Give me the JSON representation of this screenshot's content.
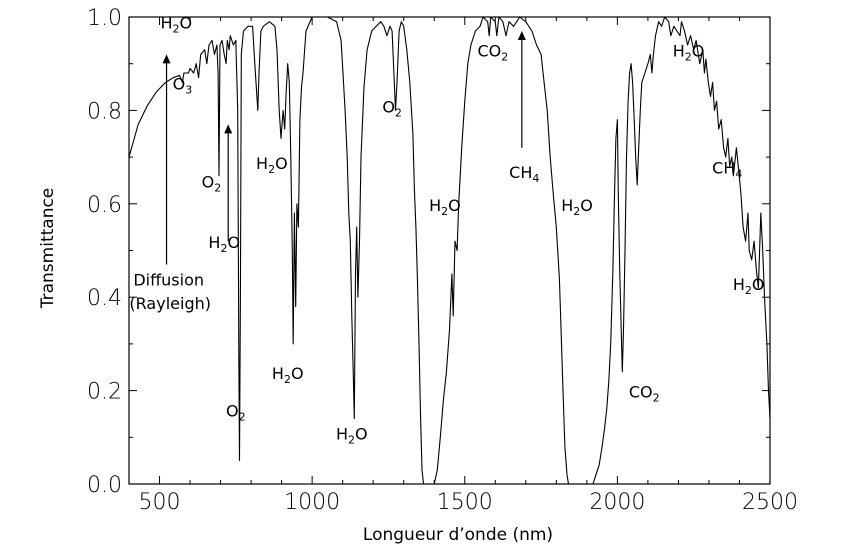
{
  "chart_data": {
    "type": "line",
    "title": "",
    "xlabel": "Longueur d’onde (nm)",
    "ylabel": "Transmittance",
    "xlim": [
      400,
      2500
    ],
    "ylim": [
      0,
      1.0
    ],
    "x_ticks": [
      {
        "value": 500,
        "label": "500"
      },
      {
        "value": 1000,
        "label": "1000"
      },
      {
        "value": 1500,
        "label": "1500"
      },
      {
        "value": 2000,
        "label": "2000"
      },
      {
        "value": 2500,
        "label": "2500"
      }
    ],
    "y_ticks": [
      {
        "value": 0.0,
        "label": "0.0"
      },
      {
        "value": 0.2,
        "label": "0.2"
      },
      {
        "value": 0.4,
        "label": "0.4"
      },
      {
        "value": 0.6,
        "label": "0.6"
      },
      {
        "value": 0.8,
        "label": "0.8"
      },
      {
        "value": 1.0,
        "label": "1.0"
      }
    ],
    "grid": false,
    "legend": "none",
    "series": [
      {
        "color": "#000000",
        "points": [
          [
            400,
            0.7
          ],
          [
            430,
            0.77
          ],
          [
            460,
            0.81
          ],
          [
            490,
            0.84
          ],
          [
            520,
            0.86
          ],
          [
            545,
            0.87
          ],
          [
            565,
            0.875
          ],
          [
            575,
            0.86
          ],
          [
            580,
            0.88
          ],
          [
            595,
            0.88
          ],
          [
            600,
            0.89
          ],
          [
            612,
            0.88
          ],
          [
            620,
            0.9
          ],
          [
            628,
            0.87
          ],
          [
            635,
            0.92
          ],
          [
            648,
            0.93
          ],
          [
            655,
            0.9
          ],
          [
            662,
            0.94
          ],
          [
            672,
            0.95
          ],
          [
            680,
            0.92
          ],
          [
            688,
            0.94
          ],
          [
            692,
            0.88
          ],
          [
            695,
            0.66
          ],
          [
            698,
            0.94
          ],
          [
            705,
            0.95
          ],
          [
            712,
            0.92
          ],
          [
            718,
            0.9
          ],
          [
            722,
            0.95
          ],
          [
            728,
            0.93
          ],
          [
            732,
            0.96
          ],
          [
            742,
            0.94
          ],
          [
            750,
            0.95
          ],
          [
            756,
            0.8
          ],
          [
            760,
            0.25
          ],
          [
            762,
            0.05
          ],
          [
            765,
            0.4
          ],
          [
            768,
            0.92
          ],
          [
            775,
            0.97
          ],
          [
            790,
            0.98
          ],
          [
            805,
            0.98
          ],
          [
            812,
            0.9
          ],
          [
            818,
            0.84
          ],
          [
            822,
            0.8
          ],
          [
            826,
            0.88
          ],
          [
            832,
            0.97
          ],
          [
            840,
            0.98
          ],
          [
            860,
            0.99
          ],
          [
            878,
            0.98
          ],
          [
            885,
            0.93
          ],
          [
            892,
            0.8
          ],
          [
            898,
            0.74
          ],
          [
            905,
            0.8
          ],
          [
            910,
            0.76
          ],
          [
            915,
            0.84
          ],
          [
            920,
            0.9
          ],
          [
            925,
            0.86
          ],
          [
            930,
            0.7
          ],
          [
            935,
            0.5
          ],
          [
            938,
            0.3
          ],
          [
            942,
            0.58
          ],
          [
            946,
            0.38
          ],
          [
            950,
            0.6
          ],
          [
            955,
            0.55
          ],
          [
            960,
            0.78
          ],
          [
            965,
            0.85
          ],
          [
            970,
            0.88
          ],
          [
            980,
            0.97
          ],
          [
            1000,
            1.0
          ],
          [
            1050,
            1.0
          ],
          [
            1080,
            0.99
          ],
          [
            1095,
            0.95
          ],
          [
            1108,
            0.8
          ],
          [
            1115,
            0.7
          ],
          [
            1120,
            0.58
          ],
          [
            1125,
            0.52
          ],
          [
            1130,
            0.36
          ],
          [
            1134,
            0.26
          ],
          [
            1138,
            0.14
          ],
          [
            1142,
            0.45
          ],
          [
            1146,
            0.55
          ],
          [
            1150,
            0.4
          ],
          [
            1155,
            0.52
          ],
          [
            1160,
            0.7
          ],
          [
            1170,
            0.85
          ],
          [
            1180,
            0.93
          ],
          [
            1195,
            0.97
          ],
          [
            1210,
            0.98
          ],
          [
            1225,
            0.99
          ],
          [
            1235,
            0.98
          ],
          [
            1245,
            0.96
          ],
          [
            1255,
            0.98
          ],
          [
            1262,
            0.97
          ],
          [
            1268,
            0.88
          ],
          [
            1273,
            0.8
          ],
          [
            1278,
            0.86
          ],
          [
            1285,
            0.97
          ],
          [
            1292,
            0.99
          ],
          [
            1300,
            0.98
          ],
          [
            1310,
            0.93
          ],
          [
            1320,
            0.86
          ],
          [
            1330,
            0.75
          ],
          [
            1335,
            0.63
          ],
          [
            1340,
            0.55
          ],
          [
            1345,
            0.44
          ],
          [
            1350,
            0.3
          ],
          [
            1355,
            0.15
          ],
          [
            1360,
            0.03
          ],
          [
            1365,
            0.0
          ],
          [
            1400,
            0.0
          ],
          [
            1410,
            0.03
          ],
          [
            1420,
            0.1
          ],
          [
            1430,
            0.18
          ],
          [
            1440,
            0.24
          ],
          [
            1450,
            0.33
          ],
          [
            1458,
            0.45
          ],
          [
            1462,
            0.36
          ],
          [
            1468,
            0.52
          ],
          [
            1475,
            0.5
          ],
          [
            1480,
            0.6
          ],
          [
            1490,
            0.72
          ],
          [
            1500,
            0.82
          ],
          [
            1510,
            0.9
          ],
          [
            1520,
            0.94
          ],
          [
            1535,
            0.97
          ],
          [
            1550,
            0.98
          ],
          [
            1560,
            1.0
          ],
          [
            1575,
            0.99
          ],
          [
            1580,
            0.96
          ],
          [
            1585,
            1.0
          ],
          [
            1600,
            0.99
          ],
          [
            1605,
            0.96
          ],
          [
            1612,
            1.0
          ],
          [
            1625,
            0.99
          ],
          [
            1635,
            0.96
          ],
          [
            1645,
            0.99
          ],
          [
            1660,
            0.98
          ],
          [
            1680,
            1.0
          ],
          [
            1700,
            0.99
          ],
          [
            1720,
            0.97
          ],
          [
            1735,
            0.94
          ],
          [
            1750,
            0.92
          ],
          [
            1760,
            0.86
          ],
          [
            1770,
            0.8
          ],
          [
            1780,
            0.7
          ],
          [
            1790,
            0.62
          ],
          [
            1800,
            0.55
          ],
          [
            1810,
            0.44
          ],
          [
            1815,
            0.34
          ],
          [
            1822,
            0.2
          ],
          [
            1828,
            0.08
          ],
          [
            1835,
            0.02
          ],
          [
            1840,
            0.0
          ],
          [
            1920,
            0.0
          ],
          [
            1930,
            0.02
          ],
          [
            1940,
            0.04
          ],
          [
            1950,
            0.08
          ],
          [
            1958,
            0.12
          ],
          [
            1965,
            0.16
          ],
          [
            1972,
            0.22
          ],
          [
            1978,
            0.3
          ],
          [
            1985,
            0.45
          ],
          [
            1990,
            0.6
          ],
          [
            1995,
            0.74
          ],
          [
            2000,
            0.78
          ],
          [
            2003,
            0.62
          ],
          [
            2008,
            0.45
          ],
          [
            2012,
            0.35
          ],
          [
            2016,
            0.24
          ],
          [
            2020,
            0.33
          ],
          [
            2025,
            0.5
          ],
          [
            2030,
            0.7
          ],
          [
            2035,
            0.82
          ],
          [
            2040,
            0.88
          ],
          [
            2045,
            0.9
          ],
          [
            2050,
            0.86
          ],
          [
            2055,
            0.78
          ],
          [
            2060,
            0.7
          ],
          [
            2065,
            0.64
          ],
          [
            2070,
            0.72
          ],
          [
            2075,
            0.8
          ],
          [
            2080,
            0.86
          ],
          [
            2090,
            0.88
          ],
          [
            2100,
            0.9
          ],
          [
            2108,
            0.92
          ],
          [
            2113,
            0.88
          ],
          [
            2118,
            0.92
          ],
          [
            2125,
            0.96
          ],
          [
            2135,
            0.99
          ],
          [
            2145,
            0.98
          ],
          [
            2155,
            1.0
          ],
          [
            2168,
            0.99
          ],
          [
            2175,
            0.96
          ],
          [
            2185,
            0.98
          ],
          [
            2195,
            0.97
          ],
          [
            2205,
            0.96
          ],
          [
            2210,
            0.99
          ],
          [
            2220,
            0.97
          ],
          [
            2230,
            0.94
          ],
          [
            2240,
            0.96
          ],
          [
            2250,
            0.93
          ],
          [
            2258,
            0.95
          ],
          [
            2265,
            0.92
          ],
          [
            2270,
            0.9
          ],
          [
            2280,
            0.93
          ],
          [
            2285,
            0.88
          ],
          [
            2290,
            0.91
          ],
          [
            2298,
            0.86
          ],
          [
            2305,
            0.83
          ],
          [
            2312,
            0.86
          ],
          [
            2318,
            0.8
          ],
          [
            2325,
            0.82
          ],
          [
            2332,
            0.76
          ],
          [
            2340,
            0.78
          ],
          [
            2348,
            0.72
          ],
          [
            2355,
            0.7
          ],
          [
            2362,
            0.74
          ],
          [
            2368,
            0.68
          ],
          [
            2375,
            0.7
          ],
          [
            2380,
            0.66
          ],
          [
            2390,
            0.72
          ],
          [
            2396,
            0.68
          ],
          [
            2405,
            0.62
          ],
          [
            2412,
            0.55
          ],
          [
            2420,
            0.52
          ],
          [
            2428,
            0.58
          ],
          [
            2432,
            0.5
          ],
          [
            2440,
            0.48
          ],
          [
            2448,
            0.52
          ],
          [
            2455,
            0.46
          ],
          [
            2462,
            0.42
          ],
          [
            2470,
            0.58
          ],
          [
            2476,
            0.5
          ],
          [
            2482,
            0.4
          ],
          [
            2490,
            0.3
          ],
          [
            2495,
            0.2
          ],
          [
            2500,
            0.14
          ]
        ]
      }
    ],
    "annotations": [
      {
        "text": "H",
        "sub": "2",
        "tail": "O",
        "x": 555,
        "y": 0.975
      },
      {
        "text": "O",
        "sub": "3",
        "tail": "",
        "x": 575,
        "y": 0.845
      },
      {
        "text": "O",
        "sub": "2",
        "tail": "",
        "x": 670,
        "y": 0.635
      },
      {
        "text": "H",
        "sub": "2",
        "tail": "O",
        "x": 712,
        "y": 0.505
      },
      {
        "text": "Diffusion",
        "sub": "",
        "tail": "",
        "x": 530,
        "y": 0.425
      },
      {
        "text": "(Rayleigh)",
        "sub": "",
        "tail": "",
        "x": 535,
        "y": 0.375
      },
      {
        "text": "O",
        "sub": "2",
        "tail": "",
        "x": 750,
        "y": 0.145
      },
      {
        "text": "H",
        "sub": "2",
        "tail": "O",
        "x": 868,
        "y": 0.675
      },
      {
        "text": "H",
        "sub": "2",
        "tail": "O",
        "x": 920,
        "y": 0.225
      },
      {
        "text": "H",
        "sub": "2",
        "tail": "O",
        "x": 1130,
        "y": 0.095
      },
      {
        "text": "O",
        "sub": "2",
        "tail": "",
        "x": 1262,
        "y": 0.795
      },
      {
        "text": "H",
        "sub": "2",
        "tail": "O",
        "x": 1435,
        "y": 0.585
      },
      {
        "text": "CO",
        "sub": "2",
        "tail": "",
        "x": 1592,
        "y": 0.915
      },
      {
        "text": "CH",
        "sub": "4",
        "tail": "",
        "x": 1695,
        "y": 0.655
      },
      {
        "text": "H",
        "sub": "2",
        "tail": "O",
        "x": 1868,
        "y": 0.585
      },
      {
        "text": "CO",
        "sub": "2",
        "tail": "",
        "x": 2088,
        "y": 0.185
      },
      {
        "text": "H",
        "sub": "2",
        "tail": "O",
        "x": 2233,
        "y": 0.915
      },
      {
        "text": "CH",
        "sub": "4",
        "tail": "",
        "x": 2360,
        "y": 0.665
      },
      {
        "text": "H",
        "sub": "2",
        "tail": "O",
        "x": 2430,
        "y": 0.415
      }
    ],
    "arrows": [
      {
        "x": 523,
        "y_from": 0.47,
        "y_to": 0.92
      },
      {
        "x": 725,
        "y_from": 0.52,
        "y_to": 0.77
      },
      {
        "x": 1687,
        "y_from": 0.72,
        "y_to": 0.97
      }
    ]
  }
}
